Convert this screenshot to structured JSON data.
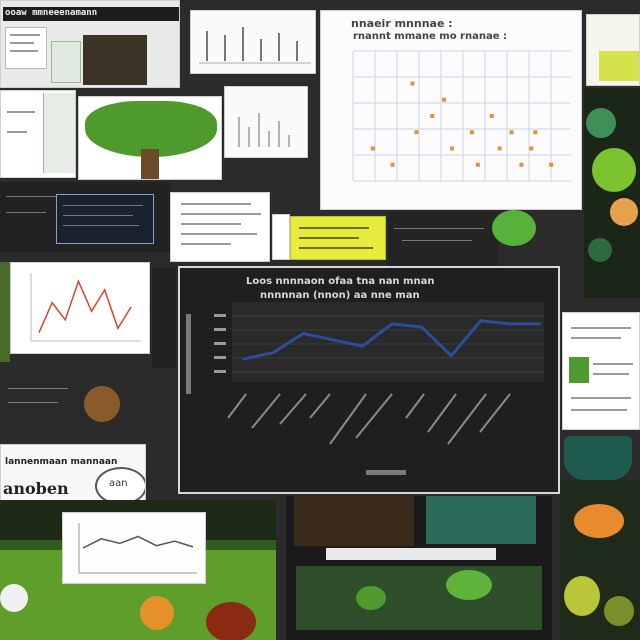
{
  "colors": {
    "board": "#2b2b2b",
    "paper": "#f3f3f1",
    "chart_bg": "#1f1f1f",
    "line_blue": "#2c4c9c",
    "scatter_orange": "#e0913b",
    "leaf_green": "#4f9a2c",
    "sticky_yellow": "#e7ec3c"
  },
  "top_left_banner": {
    "text": "ooaw mmneeenamann"
  },
  "scatter_panel": {
    "title_line1": "nnaeir mnnnae  :",
    "title_line2": "rnannt mmane mo rnanae :"
  },
  "dark_chart_panel": {
    "title_line1": "Loos nnnnaon  ofaa  tna  nan mnan",
    "title_line2": "nnnnnan  (nnon)  aa  nne  man"
  },
  "left_banner": {
    "line1": "lannenmaan mannaan",
    "line2": "anoben"
  },
  "gauge_label": "aan",
  "chart_data": [
    {
      "type": "line",
      "title": "",
      "categories": [
        "",
        "",
        "",
        "",
        "",
        "",
        "",
        "",
        "",
        "",
        ""
      ],
      "values": [
        36,
        38,
        44,
        42,
        40,
        47,
        46,
        37,
        48,
        47,
        47
      ],
      "xlabel": "",
      "ylabel": "",
      "ylim": [
        30,
        52
      ]
    },
    {
      "type": "scatter",
      "title": "",
      "x": [
        1,
        2,
        3,
        3.2,
        4,
        4.6,
        5,
        6,
        6.3,
        7,
        7.4,
        8,
        8.5,
        9,
        9.2,
        10
      ],
      "y": [
        2,
        1,
        6,
        3,
        4,
        5,
        2,
        3,
        1,
        4,
        2,
        3,
        1,
        2,
        3,
        1
      ],
      "xlim": [
        0,
        11
      ],
      "ylim": [
        0,
        8
      ]
    },
    {
      "type": "line",
      "title": "",
      "values": [
        5,
        40,
        20,
        65,
        30,
        55,
        10,
        35
      ],
      "ylim": [
        0,
        70
      ]
    },
    {
      "type": "line",
      "title": "",
      "values": [
        20,
        28,
        24,
        30,
        22,
        26,
        21
      ],
      "ylim": [
        0,
        40
      ]
    }
  ]
}
